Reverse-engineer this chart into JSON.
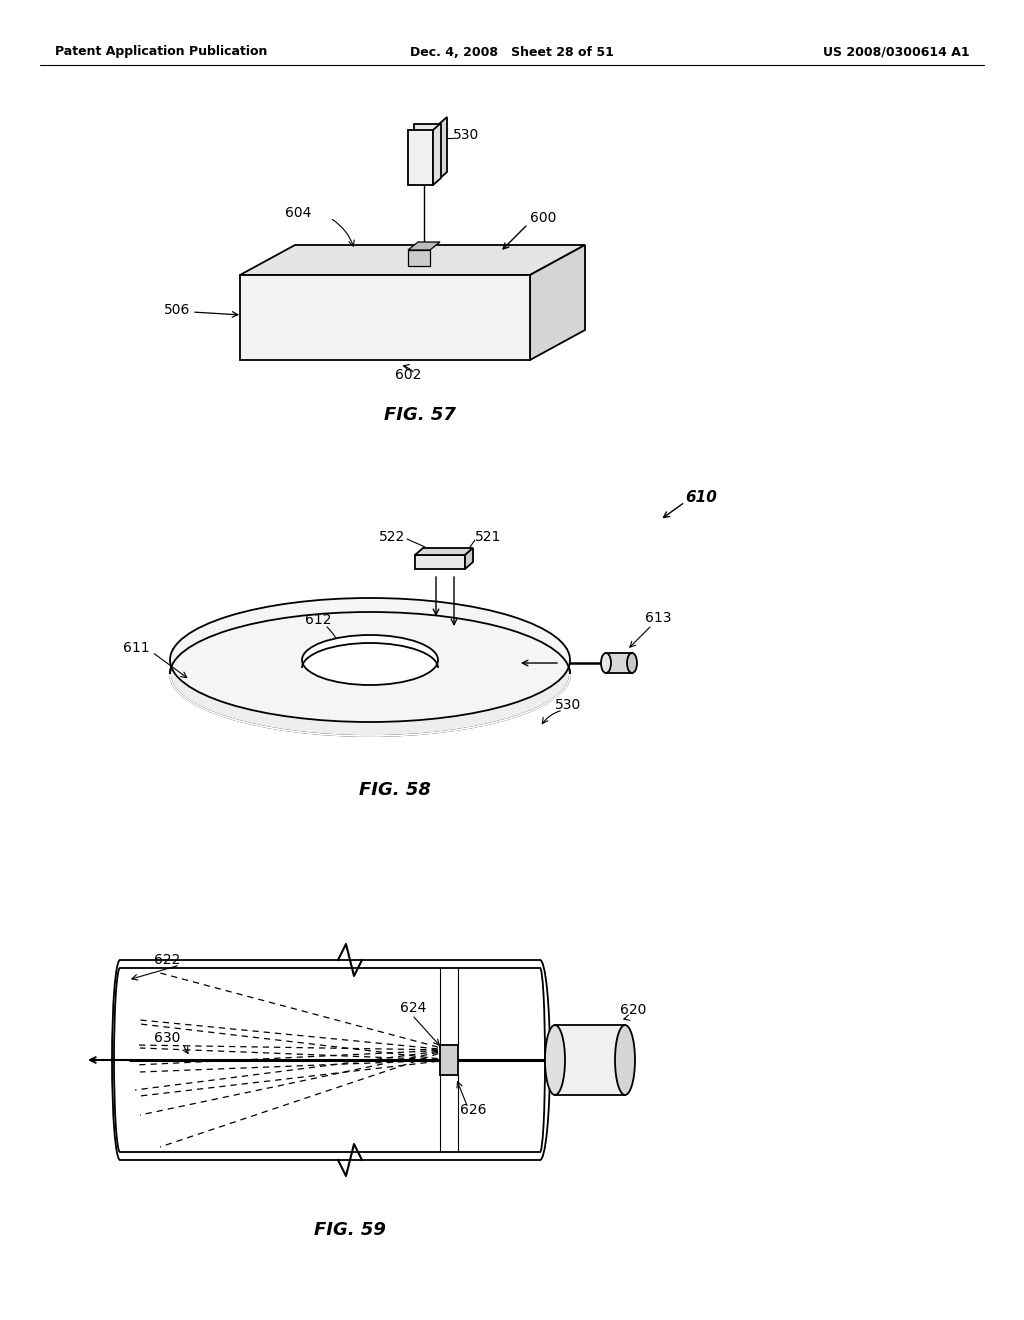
{
  "background_color": "#ffffff",
  "header_left": "Patent Application Publication",
  "header_mid": "Dec. 4, 2008   Sheet 28 of 51",
  "header_right": "US 2008/0300614 A1",
  "fig57_title": "FIG. 57",
  "fig58_title": "FIG. 58",
  "fig59_title": "FIG. 59",
  "label_color": "#000000",
  "line_color": "#000000",
  "line_width": 1.3
}
